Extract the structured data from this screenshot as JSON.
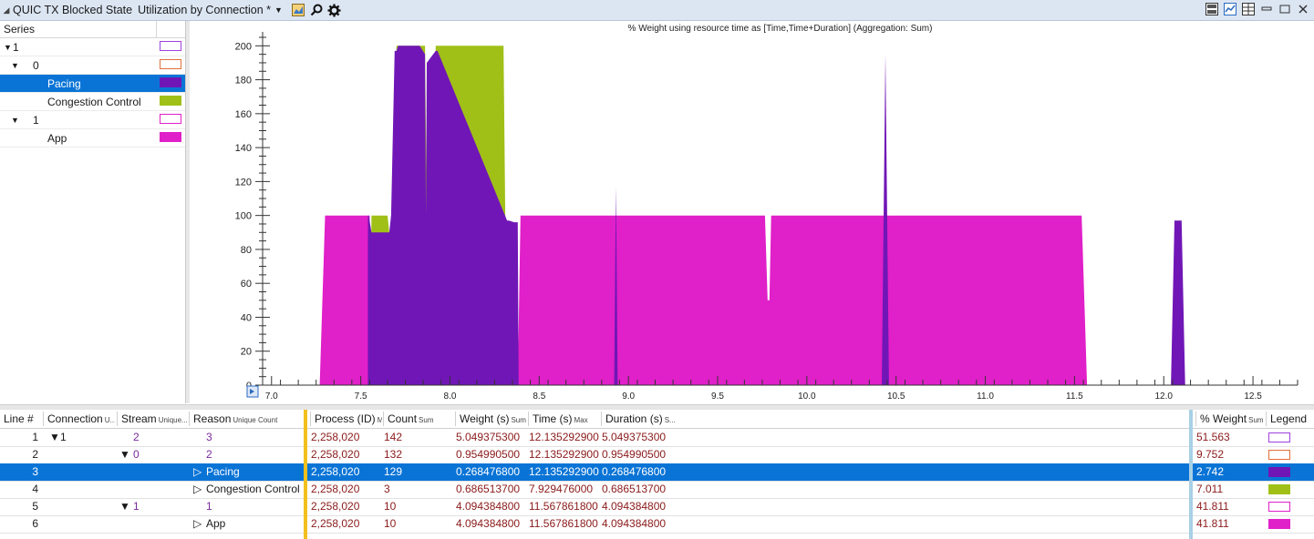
{
  "titlebar": {
    "collapse_glyph": "◢",
    "graph_title": "QUIC TX Blocked State",
    "preset_name": "Utilization by Connection *",
    "dropdown_glyph": "▼",
    "icons": [
      "chart-type-icon",
      "search-icon",
      "settings-icon"
    ],
    "right_icons": [
      "graph-view-icon",
      "line-view-icon",
      "table-view-icon",
      "minimize-icon",
      "restore-icon",
      "close-icon"
    ]
  },
  "series_panel": {
    "header": "Series",
    "rows": [
      {
        "expander": "▼",
        "label": "1",
        "color": "#a040e0",
        "style": "outline"
      },
      {
        "expander": "▼",
        "label": "0",
        "color": "#e0703a",
        "style": "outline"
      },
      {
        "expander": "",
        "label": "Pacing",
        "color": "#7016b6",
        "style": "fill",
        "selected": true
      },
      {
        "expander": "",
        "label": "Congestion Control",
        "color": "#a0c018",
        "style": "fill"
      },
      {
        "expander": "▼",
        "label": "1",
        "color": "#e020c8",
        "style": "outline"
      },
      {
        "expander": "",
        "label": "App",
        "color": "#e020c8",
        "style": "fill"
      }
    ]
  },
  "chart_data": {
    "type": "area",
    "title": "% Weight using resource time as [Time,Time+Duration] (Aggregation: Sum)",
    "xlim": [
      6.95,
      12.75
    ],
    "ylim": [
      0,
      205
    ],
    "x_ticks": [
      "7.0",
      "7.5",
      "8.0",
      "8.5",
      "9.0",
      "9.5",
      "10.0",
      "10.5",
      "11.0",
      "11.5",
      "12.0",
      "12.5"
    ],
    "y_ticks": [
      "0",
      "20",
      "40",
      "60",
      "80",
      "100",
      "120",
      "140",
      "160",
      "180",
      "200"
    ],
    "series": [
      {
        "name": "App",
        "color": "#e020c8",
        "x": [
          7.27,
          7.3,
          7.55,
          7.56,
          7.655,
          7.67,
          8.31,
          8.32,
          8.38,
          8.395,
          9.765,
          9.78,
          9.79,
          9.8,
          11.54,
          11.57
        ],
        "y": [
          0,
          100,
          100,
          0,
          0,
          100,
          100,
          0,
          0,
          100,
          100,
          50,
          50,
          100,
          100,
          0
        ]
      },
      {
        "name": "Congestion Control",
        "color": "#a0c018",
        "x": [
          7.55,
          7.56,
          7.65,
          7.66,
          7.69,
          7.7,
          7.86,
          7.87,
          7.91,
          7.92,
          8.3,
          8.31,
          8.32
        ],
        "y": [
          0,
          100,
          100,
          90,
          100,
          200,
          200,
          100,
          100,
          200,
          200,
          100,
          0
        ]
      },
      {
        "name": "Pacing",
        "color": "#7016b6",
        "x": [
          7.54,
          7.545,
          7.56,
          7.66,
          7.67,
          7.69,
          7.7,
          7.71,
          7.83,
          7.86,
          7.865,
          7.87,
          7.92,
          7.93,
          8.32,
          8.33,
          8.36,
          8.38,
          8.385,
          8.39,
          8.92,
          8.93,
          8.94,
          10.42,
          10.44,
          10.45,
          10.46,
          12.04,
          12.06,
          12.1,
          12.12
        ],
        "y": [
          100,
          100,
          90,
          90,
          100,
          197,
          197,
          200,
          200,
          195,
          100,
          190,
          197,
          197,
          97,
          97,
          96,
          96,
          0,
          0,
          0,
          117,
          0,
          0,
          195,
          100,
          0,
          0,
          97,
          97,
          0
        ]
      }
    ]
  },
  "table": {
    "columns": [
      {
        "label": "Line #",
        "sub": ""
      },
      {
        "label": "Connection",
        "sub": "U..."
      },
      {
        "label": "Stream",
        "sub": "Unique..."
      },
      {
        "label": "Reason",
        "sub": "Unique Count"
      },
      {
        "label": "Process (ID)",
        "sub": "M."
      },
      {
        "label": "Count",
        "sub": "Sum"
      },
      {
        "label": "Weight (s)",
        "sub": "Sum"
      },
      {
        "label": "Time (s)",
        "sub": "Max"
      },
      {
        "label": "Duration (s)",
        "sub": "S..."
      },
      {
        "label": "% Weight",
        "sub": "Sum"
      },
      {
        "label": "Legend",
        "sub": ""
      }
    ],
    "rows": [
      {
        "line": "1",
        "conn_exp": "▼",
        "conn": "1",
        "stream_exp": "",
        "stream": "2",
        "reason_exp": "",
        "reason": "3",
        "process": "2,258,020",
        "count": "142",
        "weight": "5.049375300",
        "time": "12.135292900",
        "duration": "5.049375300",
        "pct": "51.563",
        "legend_color": "#a040e0",
        "legend_style": "outline"
      },
      {
        "line": "2",
        "conn_exp": "",
        "conn": "",
        "stream_exp": "▼",
        "stream": "0",
        "reason_exp": "",
        "reason": "2",
        "process": "2,258,020",
        "count": "132",
        "weight": "0.954990500",
        "time": "12.135292900",
        "duration": "0.954990500",
        "pct": "9.752",
        "legend_color": "#e0703a",
        "legend_style": "outline"
      },
      {
        "line": "3",
        "conn_exp": "",
        "conn": "",
        "stream_exp": "",
        "stream": "",
        "reason_exp": "▷",
        "reason": "Pacing",
        "process": "2,258,020",
        "count": "129",
        "weight": "0.268476800",
        "time": "12.135292900",
        "duration": "0.268476800",
        "pct": "2.742",
        "legend_color": "#7016b6",
        "legend_style": "fill",
        "selected": true
      },
      {
        "line": "4",
        "conn_exp": "",
        "conn": "",
        "stream_exp": "",
        "stream": "",
        "reason_exp": "▷",
        "reason": "Congestion Control",
        "process": "2,258,020",
        "count": "3",
        "weight": "0.686513700",
        "time": "7.929476000",
        "duration": "0.686513700",
        "pct": "7.011",
        "legend_color": "#a0c018",
        "legend_style": "fill"
      },
      {
        "line": "5",
        "conn_exp": "",
        "conn": "",
        "stream_exp": "▼",
        "stream": "1",
        "reason_exp": "",
        "reason": "1",
        "process": "2,258,020",
        "count": "10",
        "weight": "4.094384800",
        "time": "11.567861800",
        "duration": "4.094384800",
        "pct": "41.811",
        "legend_color": "#e020c8",
        "legend_style": "outline"
      },
      {
        "line": "6",
        "conn_exp": "",
        "conn": "",
        "stream_exp": "",
        "stream": "",
        "reason_exp": "▷",
        "reason": "App",
        "process": "2,258,020",
        "count": "10",
        "weight": "4.094384800",
        "time": "11.567861800",
        "duration": "4.094384800",
        "pct": "41.811",
        "legend_color": "#e020c8",
        "legend_style": "fill"
      }
    ]
  }
}
